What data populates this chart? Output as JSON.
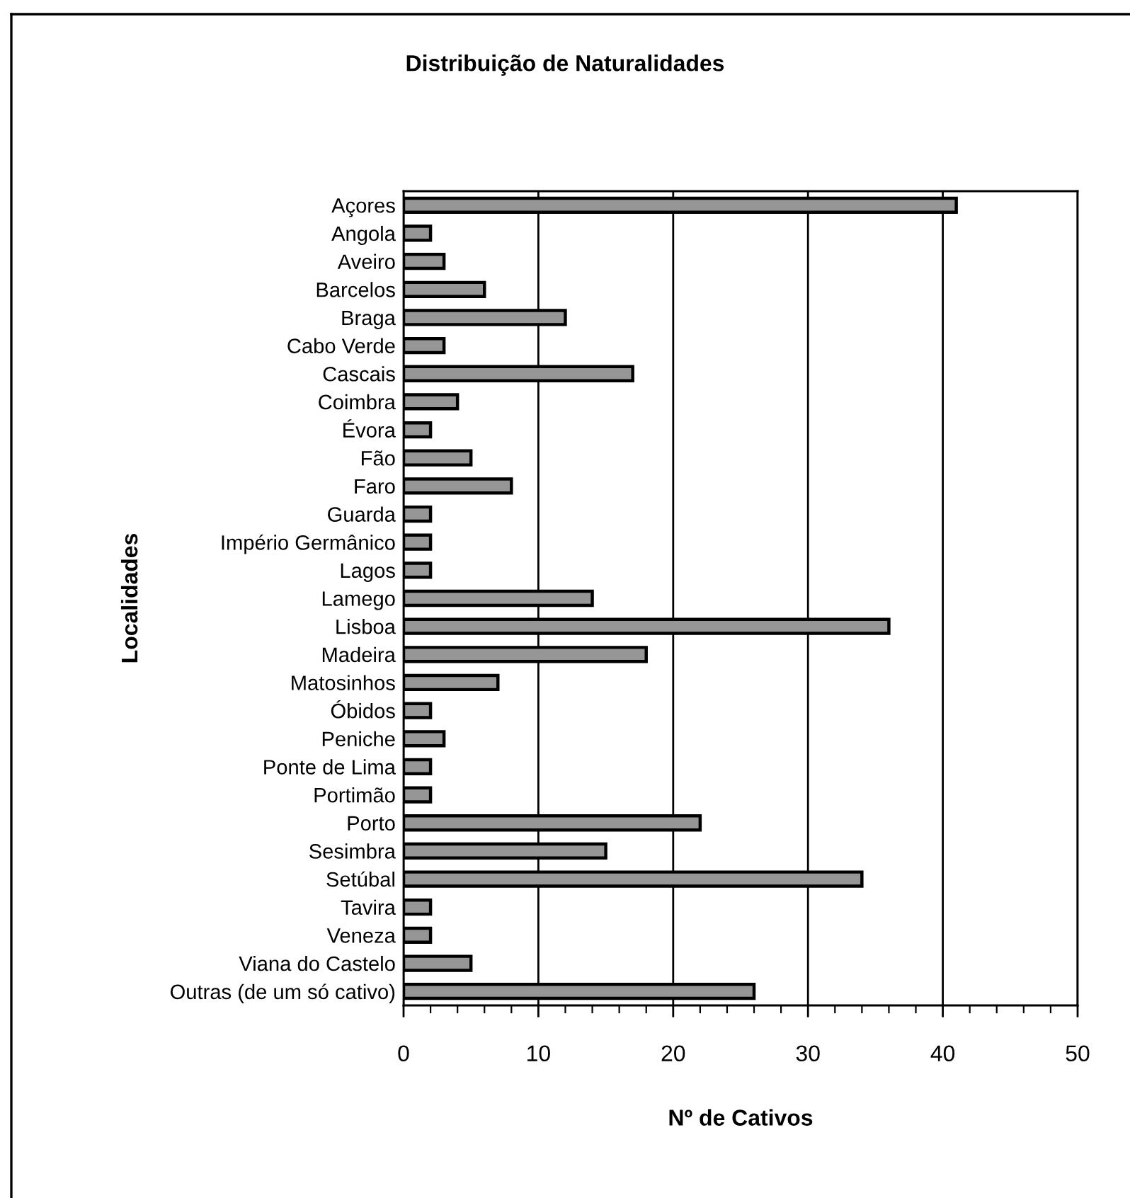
{
  "chart_data": {
    "type": "bar",
    "orientation": "horizontal",
    "title": "Distribuição de Naturalidades",
    "xlabel": "Nº de Cativos",
    "ylabel": "Localidades",
    "categories": [
      "Açores",
      "Angola",
      "Aveiro",
      "Barcelos",
      "Braga",
      "Cabo Verde",
      "Cascais",
      "Coimbra",
      "Évora",
      "Fão",
      "Faro",
      "Guarda",
      "Império Germânico",
      "Lagos",
      "Lamego",
      "Lisboa",
      "Madeira",
      "Matosinhos",
      "Óbidos",
      "Peniche",
      "Ponte de Lima",
      "Portimão",
      "Porto",
      "Sesimbra",
      "Setúbal",
      "Tavira",
      "Veneza",
      "Viana do Castelo",
      "Outras (de um só cativo)"
    ],
    "values": [
      41,
      2,
      3,
      6,
      12,
      3,
      17,
      4,
      2,
      5,
      8,
      2,
      2,
      2,
      14,
      36,
      18,
      7,
      2,
      3,
      2,
      2,
      22,
      15,
      34,
      2,
      2,
      5,
      26
    ],
    "color": "#969696",
    "xlim": [
      0,
      50
    ],
    "xticks": [
      0,
      10,
      20,
      30,
      40,
      50
    ],
    "grid": "x",
    "legend": false
  }
}
